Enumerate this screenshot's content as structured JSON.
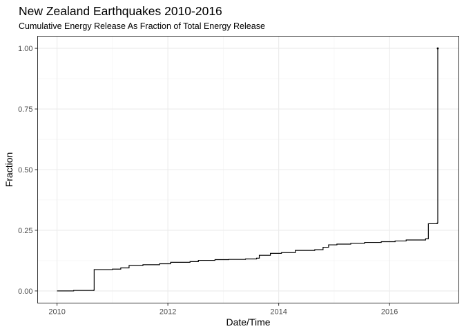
{
  "chart_data": {
    "type": "line",
    "title": "New Zealand Earthquakes 2010-2016",
    "subtitle": "Cumulative Energy Release As Fraction of Total Energy Release",
    "xlabel": "Date/Time",
    "ylabel": "Fraction",
    "xlim": [
      2009.65,
      2017.25
    ],
    "ylim": [
      -0.05,
      1.05
    ],
    "x_ticks": [
      2010,
      2012,
      2014,
      2016
    ],
    "x_tick_labels": [
      "2010",
      "2012",
      "2014",
      "2016"
    ],
    "y_ticks": [
      0,
      0.25,
      0.5,
      0.75,
      1.0
    ],
    "y_tick_labels": [
      "0.00",
      "0.25",
      "0.50",
      "0.75",
      "1.00"
    ],
    "grid": true,
    "step": true,
    "series": [
      {
        "color": "#000000",
        "x": [
          2010.0,
          2010.3,
          2010.66,
          2010.67,
          2011.0,
          2011.15,
          2011.3,
          2011.55,
          2011.85,
          2012.05,
          2012.4,
          2012.55,
          2012.85,
          2013.1,
          2013.4,
          2013.6,
          2013.65,
          2013.85,
          2014.05,
          2014.3,
          2014.65,
          2014.8,
          2014.9,
          2015.05,
          2015.3,
          2015.55,
          2015.85,
          2016.1,
          2016.3,
          2016.65,
          2016.7,
          2016.86,
          2016.87
        ],
        "y": [
          0.0,
          0.002,
          0.003,
          0.088,
          0.09,
          0.095,
          0.105,
          0.108,
          0.112,
          0.118,
          0.121,
          0.126,
          0.129,
          0.13,
          0.132,
          0.135,
          0.147,
          0.155,
          0.158,
          0.167,
          0.17,
          0.18,
          0.19,
          0.193,
          0.196,
          0.2,
          0.203,
          0.206,
          0.21,
          0.215,
          0.277,
          0.28,
          1.0
        ]
      }
    ]
  }
}
